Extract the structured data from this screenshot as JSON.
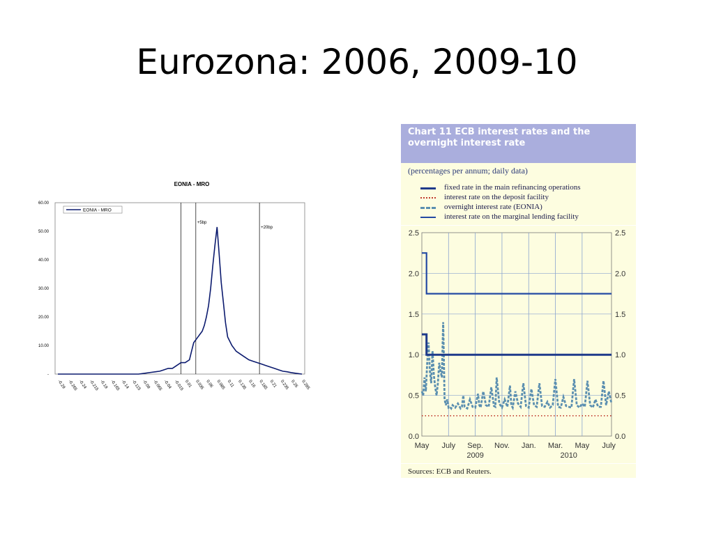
{
  "slide": {
    "title": "Eurozona: 2006, 2009-10"
  },
  "chart_data": [
    {
      "type": "area",
      "title": "EONIA - MRO",
      "legend": "EONIA - MRO",
      "legend_position": "top-left",
      "ylim": [
        0,
        60
      ],
      "yticks": [
        "60.00",
        "50.00",
        "40.00",
        "30.00",
        "20.00",
        "10.00",
        "-"
      ],
      "xticks": [
        "-0.29",
        "-0.265",
        "-0.24",
        "-0.215",
        "-0.19",
        "-0.165",
        "-0.14",
        "-0.115",
        "-0.09",
        "-0.065",
        "-0.04",
        "-0.015",
        "0.01",
        "0.035",
        "0.06",
        "0.085",
        "0.11",
        "0.135",
        "0.16",
        "0.185",
        "0.21",
        "0.235",
        "0.26",
        "0.285"
      ],
      "x": [
        -0.29,
        -0.2,
        -0.14,
        -0.1,
        -0.085,
        -0.07,
        -0.06,
        -0.05,
        -0.04,
        -0.03,
        -0.02,
        -0.01,
        0.0,
        0.01,
        0.02,
        0.025,
        0.03,
        0.04,
        0.045,
        0.05,
        0.055,
        0.06,
        0.065,
        0.07,
        0.075,
        0.08,
        0.085,
        0.09,
        0.095,
        0.1,
        0.105,
        0.11,
        0.12,
        0.13,
        0.14,
        0.15,
        0.16,
        0.17,
        0.18,
        0.19,
        0.2,
        0.21,
        0.22,
        0.23,
        0.24,
        0.25,
        0.26,
        0.27,
        0.285
      ],
      "values": [
        0,
        0,
        0,
        0,
        0.3,
        0.6,
        0.8,
        1,
        1.5,
        2,
        2,
        3,
        4,
        4,
        5,
        8,
        11,
        13,
        14,
        15,
        17,
        20,
        24,
        30,
        38,
        45,
        51.5,
        42,
        32,
        25,
        18,
        13,
        10,
        8,
        7,
        6,
        5,
        4.5,
        4,
        3.5,
        3,
        2.5,
        2,
        1.5,
        1,
        0.8,
        0.5,
        0.3,
        0
      ],
      "markers": [
        {
          "x": 0.0,
          "label": ""
        },
        {
          "x": 0.035,
          "label": "+5bp"
        },
        {
          "x": 0.185,
          "label": "+20bp"
        }
      ]
    },
    {
      "type": "line",
      "title": "Chart 11 ECB interest rates and the overnight interest rate",
      "subtitle": "(percentages per annum; daily data)",
      "ylim": [
        0,
        2.5
      ],
      "yticks": [
        "0.0",
        "0.5",
        "1.0",
        "1.5",
        "2.0",
        "2.5"
      ],
      "xticks": [
        "May",
        "July",
        "Sep.",
        "Nov.",
        "Jan.",
        "Mar.",
        "May",
        "July"
      ],
      "year_labels": [
        "2009",
        "2010"
      ],
      "xlim": [
        0,
        14.2
      ],
      "sources": "Sources: ECB and Reuters.",
      "series": [
        {
          "name": "fixed rate in the main refinancing operations",
          "style": "solid",
          "color": "#1e3a8a",
          "x": [
            0,
            0.35,
            0.35,
            14.2
          ],
          "values": [
            1.25,
            1.25,
            1.0,
            1.0
          ]
        },
        {
          "name": "interest rate on the deposit facility",
          "style": "dotted",
          "color": "#c0392b",
          "x": [
            0,
            14.2
          ],
          "values": [
            0.25,
            0.25
          ]
        },
        {
          "name": "overnight interest rate (EONIA)",
          "style": "dashed",
          "color": "#5b8fb0",
          "x": [
            0,
            0.1,
            0.2,
            0.3,
            0.4,
            0.5,
            0.6,
            0.7,
            0.8,
            0.9,
            1.0,
            1.1,
            1.2,
            1.3,
            1.4,
            1.5,
            1.6,
            1.7,
            1.8,
            1.9,
            2.0,
            2.1,
            2.2,
            2.3,
            2.5,
            2.7,
            2.9,
            3.0,
            3.1,
            3.2,
            3.4,
            3.6,
            3.8,
            4.0,
            4.2,
            4.3,
            4.4,
            4.6,
            4.8,
            5.0,
            5.2,
            5.4,
            5.5,
            5.6,
            5.8,
            6.0,
            6.2,
            6.4,
            6.6,
            6.7,
            6.8,
            7.0,
            7.2,
            7.4,
            7.6,
            7.8,
            8.0,
            8.2,
            8.4,
            8.6,
            8.8,
            9.0,
            9.2,
            9.4,
            9.6,
            9.8,
            10.0,
            10.2,
            10.4,
            10.6,
            10.8,
            11.0,
            11.2,
            11.4,
            11.6,
            11.8,
            12.0,
            12.2,
            12.4,
            12.6,
            12.8,
            13.0,
            13.2,
            13.4,
            13.6,
            13.8,
            14.0,
            14.2
          ],
          "values": [
            0.55,
            0.5,
            0.72,
            0.55,
            0.9,
            1.15,
            0.8,
            0.65,
            1.05,
            0.75,
            0.6,
            0.5,
            0.65,
            0.9,
            0.8,
            0.72,
            1.4,
            0.45,
            0.38,
            0.45,
            0.35,
            0.36,
            0.34,
            0.38,
            0.35,
            0.4,
            0.34,
            0.36,
            0.5,
            0.36,
            0.34,
            0.45,
            0.36,
            0.35,
            0.52,
            0.38,
            0.35,
            0.55,
            0.38,
            0.36,
            0.6,
            0.37,
            0.36,
            0.72,
            0.4,
            0.35,
            0.45,
            0.36,
            0.62,
            0.38,
            0.35,
            0.55,
            0.4,
            0.36,
            0.65,
            0.37,
            0.35,
            0.58,
            0.38,
            0.36,
            0.65,
            0.37,
            0.36,
            0.42,
            0.35,
            0.38,
            0.7,
            0.36,
            0.35,
            0.48,
            0.37,
            0.36,
            0.35,
            0.7,
            0.38,
            0.35,
            0.4,
            0.36,
            0.68,
            0.38,
            0.35,
            0.45,
            0.36,
            0.36,
            0.68,
            0.38,
            0.55,
            0.4
          ],
          "xlim": [
            0,
            14.2
          ]
        },
        {
          "name": "interest rate on the marginal lending facility",
          "style": "solid",
          "color": "#2349a3",
          "x": [
            0,
            0.35,
            0.35,
            14.2
          ],
          "values": [
            2.25,
            2.25,
            1.75,
            1.75
          ]
        }
      ],
      "grid": true
    }
  ]
}
